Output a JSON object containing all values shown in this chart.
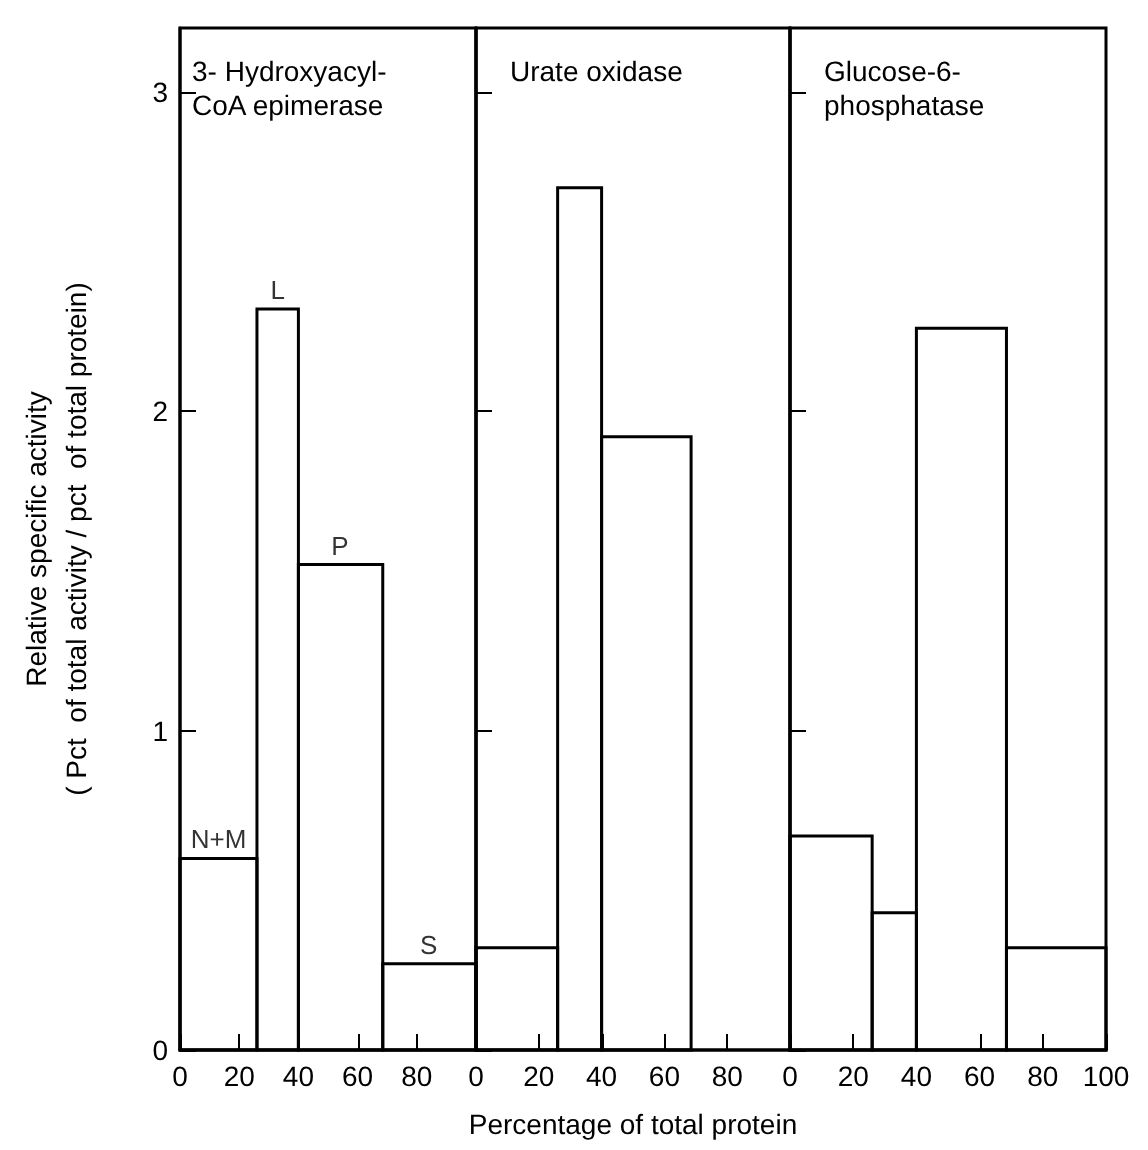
{
  "chart_data": [
    {
      "type": "histogram",
      "title": "3- Hydroxyacyl-\nCoA epimerase",
      "ylabel": "Relative specific activity\n( Pct  of total activity / pct  of total protein)",
      "bins": [
        0,
        26,
        40,
        68.5,
        100
      ],
      "values": [
        0.6,
        2.32,
        1.52,
        0.27
      ],
      "color": "#000000",
      "xlim": [
        0,
        100
      ],
      "xticks": [
        0,
        20,
        40,
        60,
        80,
        {
          "value": 100,
          "label": null
        }
      ],
      "ylim": [
        0,
        3.2
      ],
      "yticks": [
        0,
        1,
        2,
        3
      ],
      "grid": false,
      "annotations": [
        {
          "text": "N+M",
          "x": 13,
          "y": 0.6
        },
        {
          "text": "L",
          "x": 33,
          "y": 2.32
        },
        {
          "text": "P",
          "x": 54,
          "y": 1.52
        },
        {
          "text": "S",
          "x": 84,
          "y": 0.27
        }
      ]
    },
    {
      "type": "histogram",
      "title": "Urate oxidase",
      "xlabel": "Percentage of total protein",
      "bins": [
        0,
        26,
        40,
        68.5
      ],
      "values": [
        0.32,
        2.7,
        1.92
      ],
      "color": "#000000",
      "xlim": [
        0,
        100
      ],
      "xticks": [
        0,
        20,
        40,
        60,
        80,
        {
          "value": 100,
          "label": null
        }
      ],
      "ylim": [
        0,
        3.2
      ],
      "yticks": [
        0,
        1,
        2,
        3
      ],
      "grid": false,
      "tick_labels": "x"
    },
    {
      "type": "histogram",
      "title": "Glucose-6-\nphosphatase",
      "bins": [
        0,
        26,
        40,
        68.5,
        100
      ],
      "values": [
        0.67,
        0.43,
        2.26,
        0.32
      ],
      "color": "#000000",
      "xlim": [
        0,
        100
      ],
      "xticks": [
        0,
        20,
        40,
        60,
        80,
        100
      ],
      "ylim": [
        0,
        3.2
      ],
      "yticks": [
        0,
        1,
        2,
        3
      ],
      "grid": false,
      "tick_labels": "x"
    }
  ]
}
